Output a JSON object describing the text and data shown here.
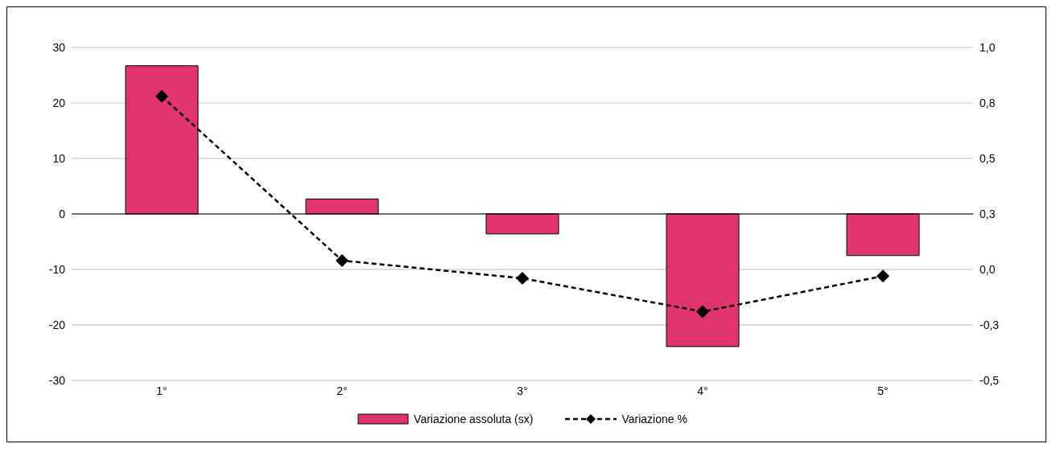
{
  "chart_data": {
    "type": "bar",
    "categories": [
      "1°",
      "2°",
      "3°",
      "4°",
      "5°"
    ],
    "series": [
      {
        "name": "Variazione assoluta (sx)",
        "color": "#e0356f",
        "values": [
          26.7,
          2.7,
          -3.6,
          -23.9,
          -7.5
        ]
      },
      {
        "name": "Variazione %",
        "type": "line",
        "axis": "y2",
        "color": "#000000",
        "marker": "diamond",
        "line_style": "dashed",
        "values": [
          0.78,
          0.04,
          -0.04,
          -0.19,
          -0.03
        ]
      }
    ],
    "ylim": [
      -30,
      30
    ],
    "yticks": [
      -30,
      -20,
      -10,
      0,
      10,
      20,
      30
    ],
    "y2lim": [
      -0.5,
      1
    ],
    "y2ticks": [
      {
        "value": -0.5,
        "label": "-0,5"
      },
      {
        "value": -0.25,
        "label": "-0,3"
      },
      {
        "value": 0,
        "label": "0,0"
      },
      {
        "value": 0.25,
        "label": "0,3"
      },
      {
        "value": 0.5,
        "label": "0,5"
      },
      {
        "value": 0.75,
        "label": "0,8"
      },
      {
        "value": 1,
        "label": "1,0"
      }
    ],
    "grid": "y",
    "legend": "bottom"
  }
}
